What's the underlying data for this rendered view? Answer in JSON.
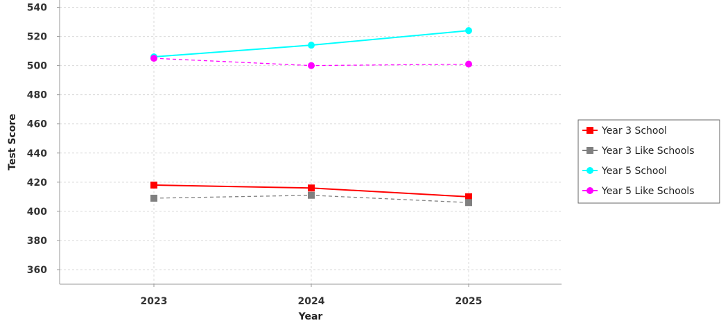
{
  "chart_data": {
    "type": "line",
    "title": "",
    "xlabel": "Year",
    "ylabel": "Test Score",
    "categories": [
      "2023",
      "2024",
      "2025"
    ],
    "ylim": [
      350,
      545
    ],
    "yticks": [
      360,
      380,
      400,
      420,
      440,
      460,
      480,
      500,
      520,
      540
    ],
    "grid": true,
    "legend_position": "right",
    "series": [
      {
        "name": "Year 3 School",
        "values": [
          418,
          416,
          410
        ],
        "color": "#ff0000",
        "marker": "square",
        "dashed": false
      },
      {
        "name": "Year 3 Like Schools",
        "values": [
          409,
          411,
          406
        ],
        "color": "#808080",
        "marker": "square",
        "dashed": true
      },
      {
        "name": "Year 5 School",
        "values": [
          506,
          514,
          524
        ],
        "color": "#00ffff",
        "marker": "circle",
        "dashed": false
      },
      {
        "name": "Year 5 Like Schools",
        "values": [
          505,
          500,
          501
        ],
        "color": "#ff00ff",
        "marker": "circle",
        "dashed": true
      }
    ]
  }
}
